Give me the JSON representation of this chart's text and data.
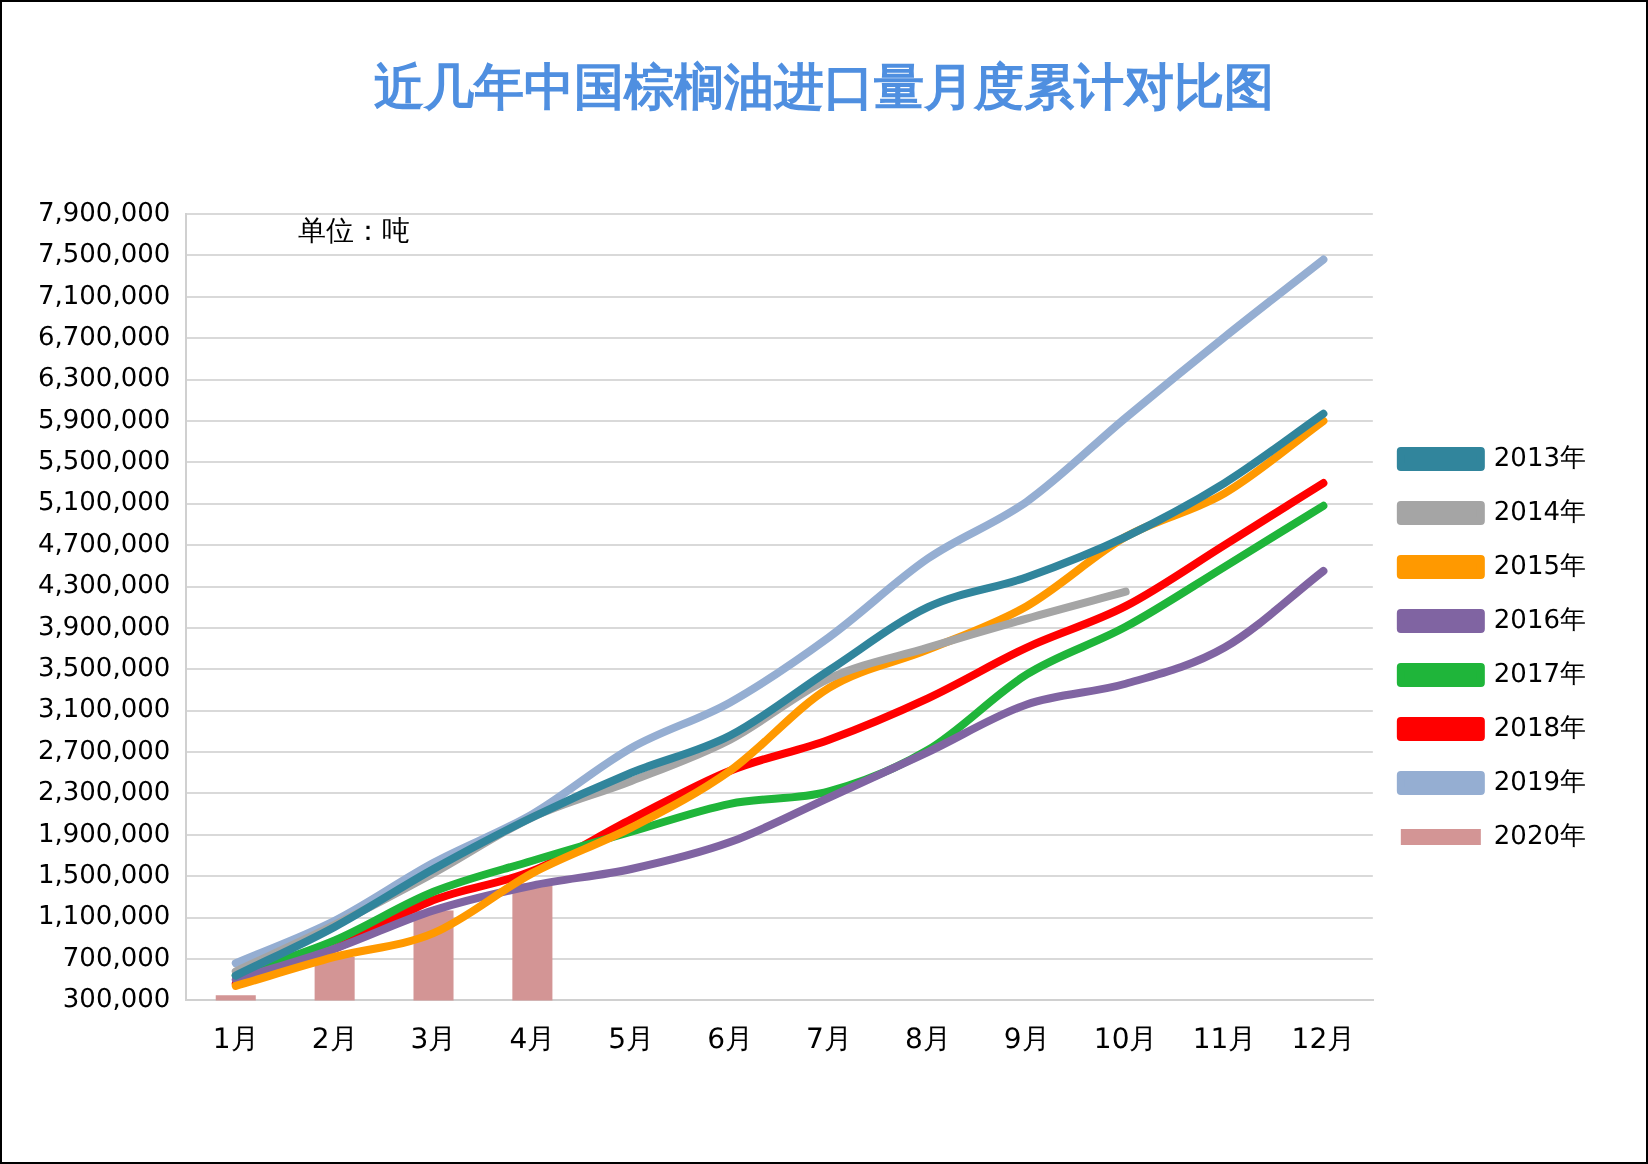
{
  "chart_data": {
    "type": "line",
    "title": "近几年中国棕榈油进口量月度累计对比图",
    "annotations": [
      "单位：吨"
    ],
    "categories": [
      "1月",
      "2月",
      "3月",
      "4月",
      "5月",
      "6月",
      "7月",
      "8月",
      "9月",
      "10月",
      "11月",
      "12月"
    ],
    "series": [
      {
        "name": "2020年",
        "type": "bar",
        "color": "#d39595",
        "values": [
          350000,
          720000,
          1170000,
          1430000,
          null,
          null,
          null,
          null,
          null,
          null,
          null,
          null
        ]
      },
      {
        "name": "2013年",
        "color": "#31859c",
        "values": [
          540000,
          1010000,
          1570000,
          2070000,
          2500000,
          2860000,
          3490000,
          4100000,
          4390000,
          4780000,
          5300000,
          5970000
        ]
      },
      {
        "name": "2014年",
        "color": "#a5a5a5",
        "values": [
          580000,
          1030000,
          1530000,
          2070000,
          2420000,
          2820000,
          3410000,
          3710000,
          3990000,
          4250000,
          null,
          null
        ]
      },
      {
        "name": "2015年",
        "color": "#ff9900",
        "values": [
          440000,
          720000,
          950000,
          1530000,
          1970000,
          2520000,
          3320000,
          3690000,
          4110000,
          4780000,
          5200000,
          5900000
        ]
      },
      {
        "name": "2016年",
        "color": "#8064a2",
        "values": [
          500000,
          800000,
          1170000,
          1410000,
          1570000,
          1830000,
          2260000,
          2700000,
          3160000,
          3360000,
          3710000,
          4450000
        ]
      },
      {
        "name": "2017年",
        "color": "#1fb53a",
        "values": [
          540000,
          880000,
          1350000,
          1650000,
          1930000,
          2200000,
          2320000,
          2720000,
          3450000,
          3910000,
          4490000,
          5080000
        ]
      },
      {
        "name": "2018年",
        "color": "#ff0000",
        "values": [
          460000,
          800000,
          1270000,
          1550000,
          2050000,
          2520000,
          2820000,
          3220000,
          3710000,
          4110000,
          4700000,
          5300000
        ]
      },
      {
        "name": "2019年",
        "color": "#95aed2",
        "values": [
          660000,
          1070000,
          1630000,
          2100000,
          2740000,
          3180000,
          3810000,
          4570000,
          5120000,
          5930000,
          6710000,
          7460000
        ]
      }
    ],
    "ylim": [
      300000,
      7900000
    ],
    "yticks": [
      {
        "value": 300000,
        "label": "300,000"
      },
      {
        "value": 700000,
        "label": "700,000"
      },
      {
        "value": 1100000,
        "label": "1,100,000"
      },
      {
        "value": 1500000,
        "label": "1,500,000"
      },
      {
        "value": 1900000,
        "label": "1,900,000"
      },
      {
        "value": 2300000,
        "label": "2,300,000"
      },
      {
        "value": 2700000,
        "label": "2,700,000"
      },
      {
        "value": 3100000,
        "label": "3,100,000"
      },
      {
        "value": 3500000,
        "label": "3,500,000"
      },
      {
        "value": 3900000,
        "label": "3,900,000"
      },
      {
        "value": 4300000,
        "label": "4,300,000"
      },
      {
        "value": 4700000,
        "label": "4,700,000"
      },
      {
        "value": 5100000,
        "label": "5,100,000"
      },
      {
        "value": 5500000,
        "label": "5,500,000"
      },
      {
        "value": 5900000,
        "label": "5,900,000"
      },
      {
        "value": 6300000,
        "label": "6,300,000"
      },
      {
        "value": 6700000,
        "label": "6,700,000"
      },
      {
        "value": 7100000,
        "label": "7,100,000"
      },
      {
        "value": 7500000,
        "label": "7,500,000"
      },
      {
        "value": 7900000,
        "label": "7,900,000"
      }
    ],
    "grid": "y",
    "legend": "right",
    "marker": "none",
    "line_style": "solid"
  }
}
